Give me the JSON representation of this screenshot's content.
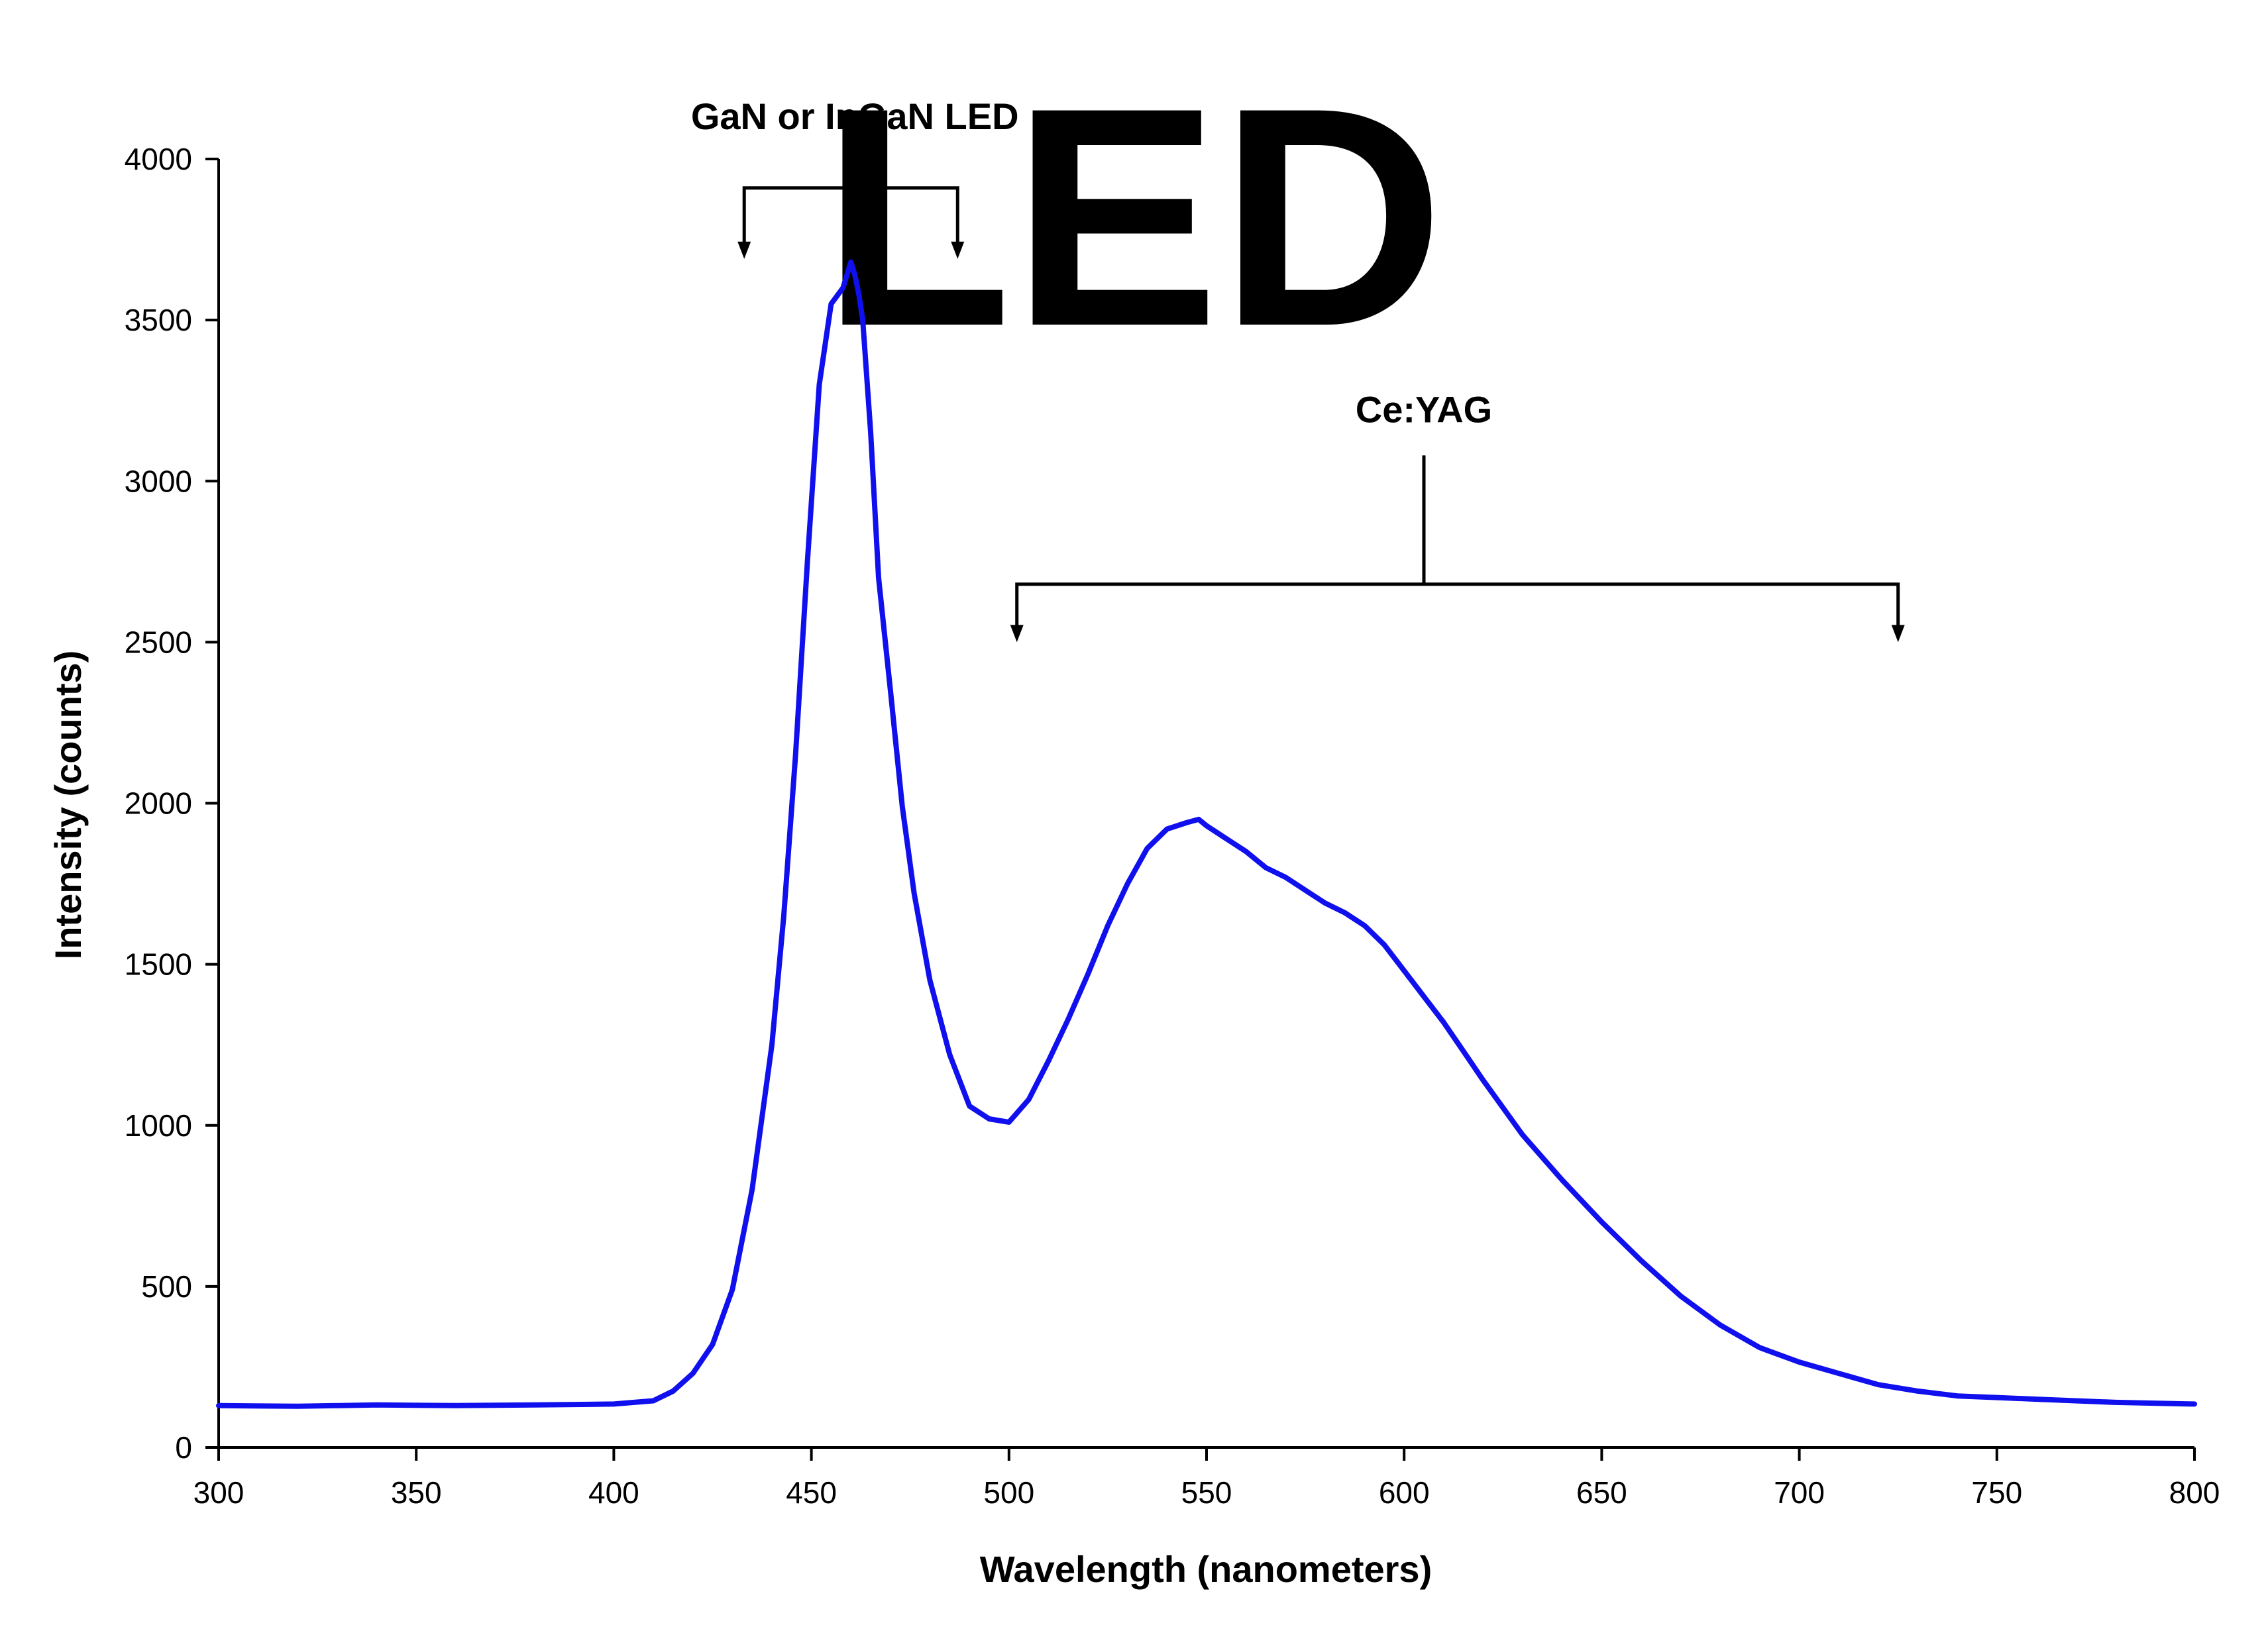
{
  "chart_data": {
    "type": "line",
    "title": "LED",
    "xlabel": "Wavelength (nanometers)",
    "ylabel": "Intensity (counts)",
    "xlim": [
      300,
      800
    ],
    "ylim": [
      0,
      4000
    ],
    "x_ticks": [
      300,
      350,
      400,
      450,
      500,
      550,
      600,
      650,
      700,
      750,
      800
    ],
    "y_ticks": [
      0,
      500,
      1000,
      1500,
      2000,
      2500,
      3000,
      3500,
      4000
    ],
    "grid": false,
    "line_color": "#1010ee",
    "series": [
      {
        "x": [
          300,
          320,
          340,
          360,
          380,
          400,
          410,
          415,
          420,
          425,
          430,
          435,
          440,
          443,
          446,
          449,
          452,
          455,
          458,
          460,
          461,
          462,
          463,
          465,
          467,
          470,
          473,
          476,
          480,
          485,
          490,
          495,
          500,
          505,
          510,
          515,
          520,
          525,
          530,
          535,
          540,
          545,
          548,
          550,
          555,
          560,
          565,
          570,
          575,
          580,
          585,
          590,
          595,
          600,
          605,
          610,
          615,
          620,
          630,
          640,
          650,
          660,
          670,
          680,
          690,
          700,
          710,
          720,
          730,
          740,
          750,
          760,
          780,
          800
        ],
        "y": [
          130,
          128,
          132,
          130,
          132,
          135,
          145,
          175,
          230,
          320,
          490,
          800,
          1250,
          1650,
          2150,
          2750,
          3300,
          3550,
          3600,
          3680,
          3640,
          3580,
          3500,
          3150,
          2700,
          2350,
          1990,
          1720,
          1450,
          1220,
          1060,
          1020,
          1010,
          1080,
          1200,
          1330,
          1470,
          1620,
          1750,
          1860,
          1920,
          1940,
          1950,
          1930,
          1890,
          1850,
          1800,
          1770,
          1730,
          1690,
          1660,
          1620,
          1560,
          1480,
          1400,
          1320,
          1230,
          1140,
          970,
          830,
          700,
          580,
          470,
          380,
          310,
          265,
          230,
          195,
          175,
          160,
          155,
          150,
          140,
          135
        ]
      }
    ],
    "annotations": [
      {
        "label": "GaN or InGaN  LED",
        "x_from": 433,
        "x_to": 487,
        "x_center": 461,
        "y_bracket": 3910,
        "y_arrow_tip": 3690,
        "y_stem_top": 3990
      },
      {
        "label": "Ce:YAG",
        "x_from": 502,
        "x_to": 725,
        "x_center": 605,
        "y_bracket": 2680,
        "y_arrow_tip": 2500,
        "y_stem_top": 3080
      }
    ]
  }
}
